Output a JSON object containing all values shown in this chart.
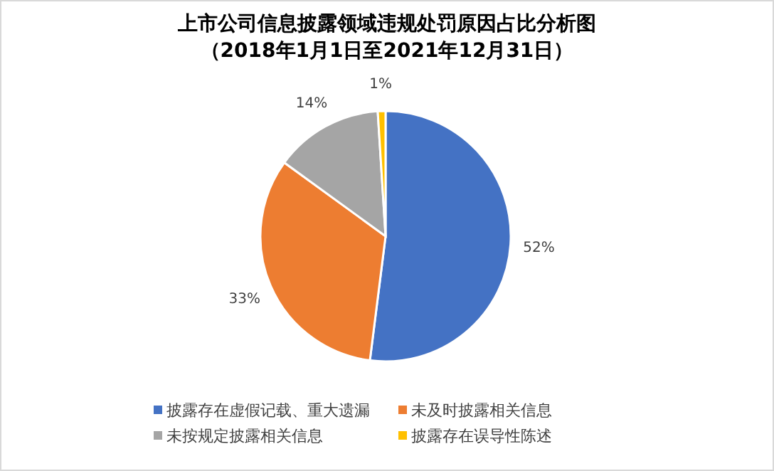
{
  "chart_data": {
    "type": "pie",
    "title": "上市公司信息披露领域违规处罚原因占比分析图",
    "subtitle": "（2018年1月1日至2021年12月31日）",
    "categories": [
      "披露存在虚假记载、重大遗漏",
      "未及时披露相关信息",
      "未按规定披露相关信息",
      "披露存在误导性陈述"
    ],
    "values": [
      52,
      33,
      14,
      1
    ],
    "colors": [
      "#4472c4",
      "#ed7d31",
      "#a5a5a5",
      "#ffc000"
    ],
    "value_labels": [
      "52%",
      "33%",
      "14%",
      "1%"
    ],
    "legend": "bottom"
  }
}
